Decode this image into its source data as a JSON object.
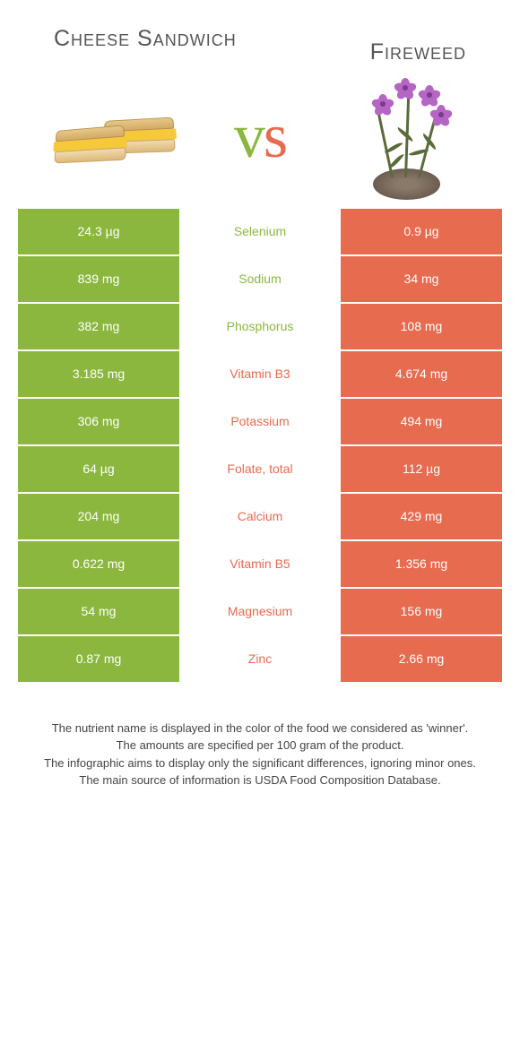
{
  "left_food": {
    "name": "Cheese Sandwich"
  },
  "right_food": {
    "name": "Fireweed"
  },
  "vs": {
    "v": "v",
    "s": "s"
  },
  "colors": {
    "left": "#8bb73f",
    "right": "#e76b4e",
    "mid_bg": "#ffffff",
    "cell_text": "#ffffff"
  },
  "rows": [
    {
      "nutrient": "Selenium",
      "left": "24.3 µg",
      "right": "0.9 µg",
      "winner": "left"
    },
    {
      "nutrient": "Sodium",
      "left": "839 mg",
      "right": "34 mg",
      "winner": "left"
    },
    {
      "nutrient": "Phosphorus",
      "left": "382 mg",
      "right": "108 mg",
      "winner": "left"
    },
    {
      "nutrient": "Vitamin B3",
      "left": "3.185 mg",
      "right": "4.674 mg",
      "winner": "right"
    },
    {
      "nutrient": "Potassium",
      "left": "306 mg",
      "right": "494 mg",
      "winner": "right"
    },
    {
      "nutrient": "Folate, total",
      "left": "64 µg",
      "right": "112 µg",
      "winner": "right"
    },
    {
      "nutrient": "Calcium",
      "left": "204 mg",
      "right": "429 mg",
      "winner": "right"
    },
    {
      "nutrient": "Vitamin B5",
      "left": "0.622 mg",
      "right": "1.356 mg",
      "winner": "right"
    },
    {
      "nutrient": "Magnesium",
      "left": "54 mg",
      "right": "156 mg",
      "winner": "right"
    },
    {
      "nutrient": "Zinc",
      "left": "0.87 mg",
      "right": "2.66 mg",
      "winner": "right"
    }
  ],
  "footnotes": [
    "The nutrient name is displayed in the color of the food we considered as 'winner'.",
    "The amounts are specified per 100 gram of the product.",
    "The infographic aims to display only the significant differences, ignoring minor ones.",
    "The main source of information is USDA Food Composition Database."
  ]
}
